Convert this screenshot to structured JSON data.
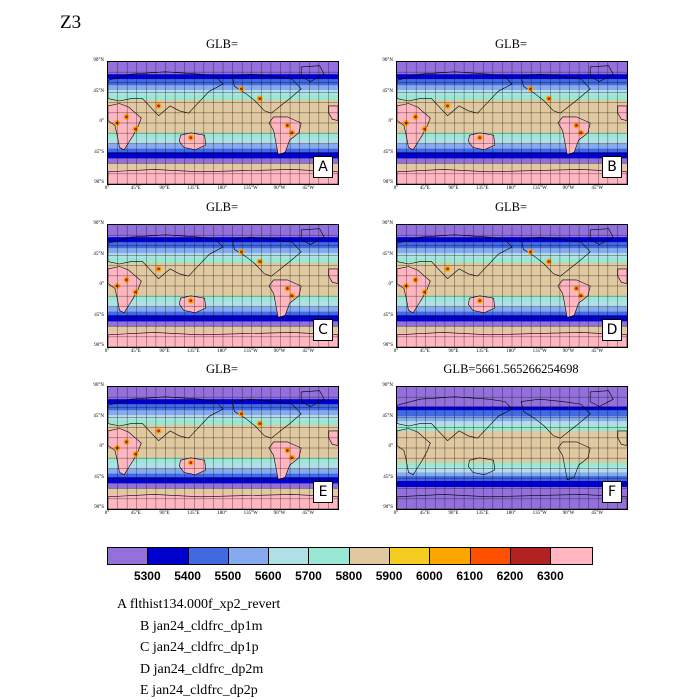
{
  "figure_title": "Z3",
  "panels": [
    {
      "id": "A",
      "title": "GLB=",
      "variant": "model"
    },
    {
      "id": "B",
      "title": "GLB=",
      "variant": "model"
    },
    {
      "id": "C",
      "title": "GLB=",
      "variant": "model"
    },
    {
      "id": "D",
      "title": "GLB=",
      "variant": "model"
    },
    {
      "id": "E",
      "title": "GLB=",
      "variant": "model"
    },
    {
      "id": "F",
      "title": "GLB=5661.565266254698",
      "variant": "obs"
    }
  ],
  "lat_labels": [
    "90°N",
    "45°N",
    "0°",
    "45°S",
    "90°S"
  ],
  "lon_labels": [
    "0°",
    "45°E",
    "90°E",
    "135°E",
    "180°",
    "135°W",
    "90°W",
    "45°W"
  ],
  "colorbar": {
    "colors": [
      "#9370db",
      "#0000cd",
      "#4169e1",
      "#87aaee",
      "#b0e0e6",
      "#98e8d4",
      "#e0c8a0",
      "#f5cc20",
      "#ffa500",
      "#ff5000",
      "#b22222",
      "#ffb6c1"
    ],
    "labels": [
      "5300",
      "5400",
      "5500",
      "5600",
      "5700",
      "5800",
      "5900",
      "6000",
      "6100",
      "6200",
      "6300"
    ]
  },
  "legend": [
    {
      "letter": "A",
      "name": "flthist134.000f_xp2_revert"
    },
    {
      "letter": "B",
      "name": "jan24_cldfrc_dp1m"
    },
    {
      "letter": "C",
      "name": "jan24_cldfrc_dp1p"
    },
    {
      "letter": "D",
      "name": "jan24_cldfrc_dp2m"
    },
    {
      "letter": "E",
      "name": "jan24_cldfrc_dp2p"
    }
  ]
}
